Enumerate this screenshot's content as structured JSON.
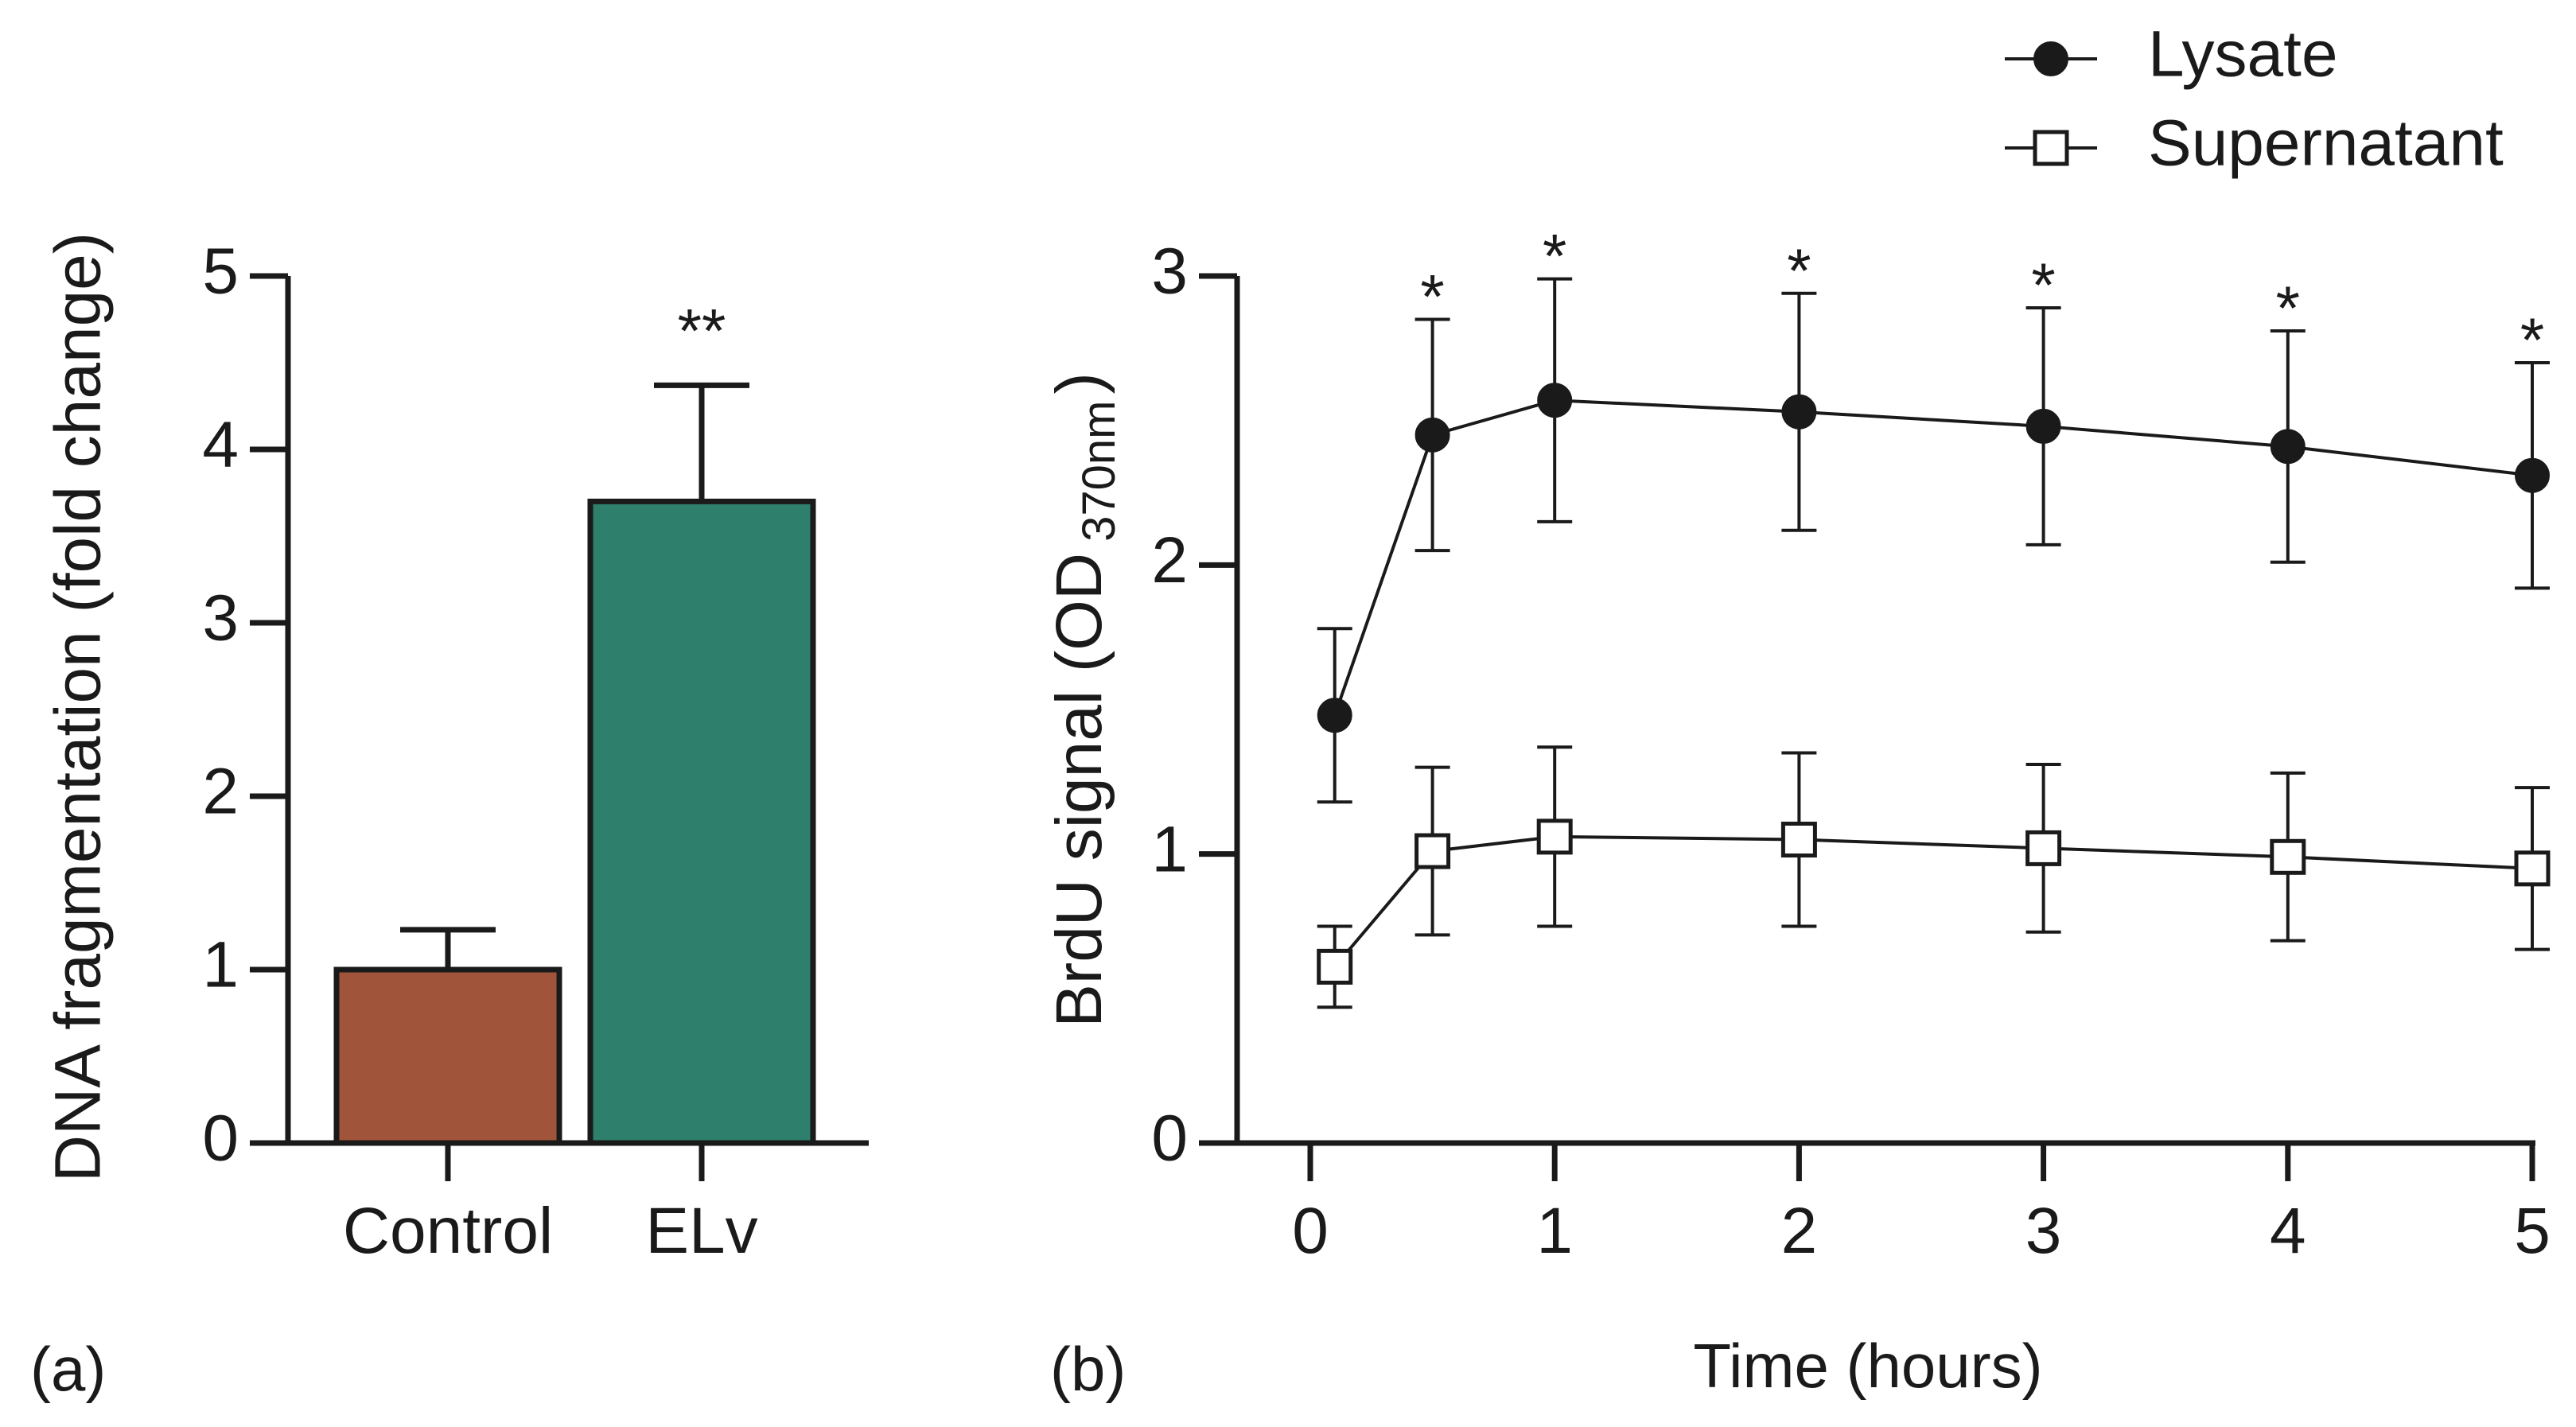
{
  "panels": {
    "a_label": "(a)",
    "b_label": "(b)"
  },
  "chart_data": [
    {
      "type": "bar",
      "categories": [
        "Control",
        "ELv"
      ],
      "values": [
        1.0,
        3.7
      ],
      "errors": [
        0.23,
        0.67
      ],
      "colors": [
        "#a0553b",
        "#2e7f6b"
      ],
      "significance": [
        "",
        "**"
      ],
      "ylabel": "DNA fragmentation (fold change)",
      "xlabel": "",
      "title": "",
      "ylim": [
        0,
        5
      ],
      "yticks": [
        "0",
        "1",
        "2",
        "3",
        "4",
        "5"
      ],
      "grid": false
    },
    {
      "type": "line",
      "x": [
        0.1,
        0.5,
        1,
        2,
        3,
        4,
        5
      ],
      "series": [
        {
          "name": "Lysate",
          "marker": "filled-circle",
          "values": [
            1.48,
            2.45,
            2.57,
            2.53,
            2.48,
            2.41,
            2.31
          ],
          "errors": [
            0.3,
            0.4,
            0.42,
            0.41,
            0.41,
            0.4,
            0.39
          ]
        },
        {
          "name": "Supernatant",
          "marker": "open-square",
          "values": [
            0.61,
            1.01,
            1.06,
            1.05,
            1.02,
            0.99,
            0.95
          ],
          "errors": [
            0.14,
            0.29,
            0.31,
            0.3,
            0.29,
            0.29,
            0.28
          ]
        }
      ],
      "significance": [
        "",
        "*",
        "*",
        "*",
        "*",
        "*",
        "*"
      ],
      "xlabel": "Time (hours)",
      "ylabel": "BrdU signal (OD",
      "ylabel_subscript": "370nm",
      "ylabel_close": ")",
      "title": "",
      "xlim": [
        0,
        5
      ],
      "ylim": [
        0,
        3
      ],
      "xticks": [
        "0",
        "1",
        "2",
        "3",
        "4",
        "5"
      ],
      "yticks": [
        "0",
        "1",
        "2",
        "3"
      ],
      "legend_position": "top-right",
      "grid": false
    }
  ]
}
